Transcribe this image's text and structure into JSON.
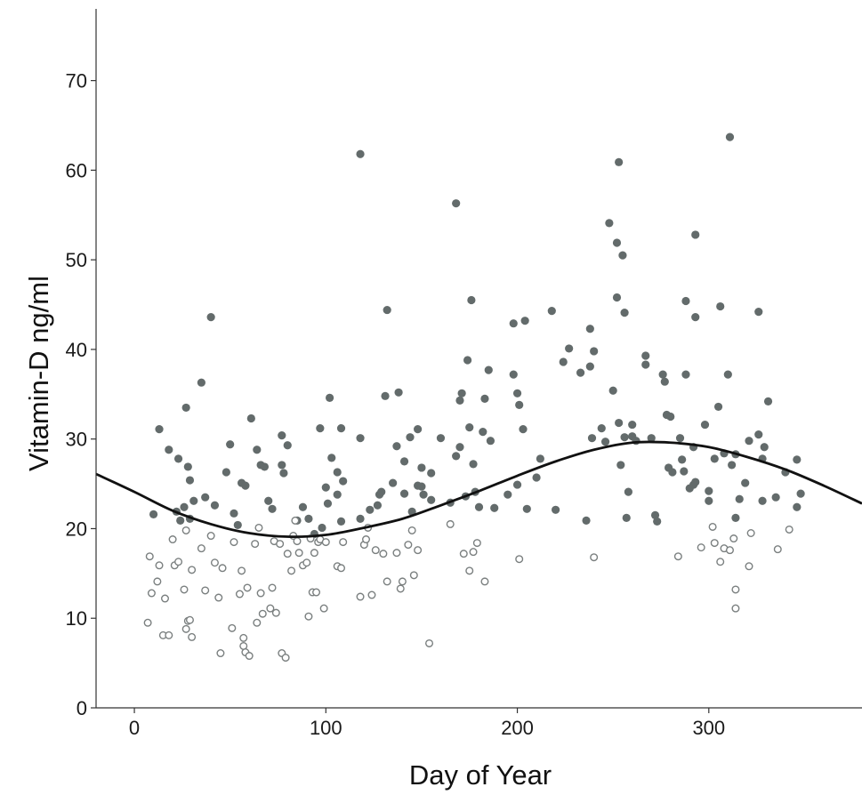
{
  "chart_data": {
    "type": "scatter",
    "title": "",
    "xlabel": "Day of Year",
    "ylabel": "Vitamin-D ng/ml",
    "xlim": [
      -20,
      380
    ],
    "ylim": [
      0,
      78
    ],
    "xticks": [
      0,
      100,
      200,
      300
    ],
    "yticks": [
      0,
      10,
      20,
      30,
      40,
      50,
      60,
      70
    ],
    "grid": false,
    "legend": "none",
    "colors": {
      "filled_marker": "#636b6b",
      "open_marker_stroke": "#7a7f7f",
      "curve": "#111111"
    },
    "series": [
      {
        "marker": "filled-circle",
        "points": [
          [
            10,
            21.6
          ],
          [
            13,
            31.1
          ],
          [
            18,
            28.8
          ],
          [
            22,
            21.9
          ],
          [
            23,
            27.8
          ],
          [
            24,
            20.9
          ],
          [
            26,
            22.4
          ],
          [
            27,
            33.5
          ],
          [
            28,
            26.9
          ],
          [
            29,
            25.4
          ],
          [
            29,
            21.1
          ],
          [
            31,
            23.1
          ],
          [
            35,
            36.3
          ],
          [
            37,
            23.5
          ],
          [
            40,
            43.6
          ],
          [
            42,
            22.6
          ],
          [
            48,
            26.3
          ],
          [
            50,
            29.4
          ],
          [
            52,
            21.7
          ],
          [
            54,
            20.4
          ],
          [
            56,
            25.1
          ],
          [
            58,
            24.8
          ],
          [
            61,
            32.3
          ],
          [
            64,
            28.8
          ],
          [
            66,
            27.1
          ],
          [
            68,
            26.9
          ],
          [
            70,
            23.1
          ],
          [
            72,
            22.2
          ],
          [
            77,
            30.4
          ],
          [
            77,
            27.1
          ],
          [
            78,
            26.2
          ],
          [
            80,
            29.3
          ],
          [
            85,
            20.9
          ],
          [
            88,
            22.4
          ],
          [
            91,
            21.1
          ],
          [
            94,
            19.4
          ],
          [
            97,
            31.2
          ],
          [
            98,
            20.1
          ],
          [
            100,
            24.6
          ],
          [
            101,
            22.8
          ],
          [
            102,
            34.6
          ],
          [
            103,
            27.9
          ],
          [
            106,
            23.8
          ],
          [
            106,
            26.3
          ],
          [
            108,
            31.2
          ],
          [
            108,
            20.8
          ],
          [
            109,
            25.3
          ],
          [
            118,
            61.8
          ],
          [
            118,
            30.1
          ],
          [
            118,
            21.1
          ],
          [
            123,
            22.1
          ],
          [
            127,
            22.6
          ],
          [
            128,
            23.8
          ],
          [
            129,
            24.1
          ],
          [
            131,
            34.8
          ],
          [
            132,
            44.4
          ],
          [
            135,
            25.1
          ],
          [
            137,
            29.2
          ],
          [
            138,
            35.2
          ],
          [
            141,
            23.9
          ],
          [
            141,
            27.5
          ],
          [
            144,
            30.2
          ],
          [
            145,
            21.9
          ],
          [
            148,
            24.8
          ],
          [
            148,
            31.1
          ],
          [
            150,
            26.8
          ],
          [
            150,
            24.7
          ],
          [
            151,
            23.8
          ],
          [
            155,
            23.2
          ],
          [
            155,
            26.2
          ],
          [
            160,
            30.1
          ],
          [
            165,
            22.9
          ],
          [
            168,
            28.1
          ],
          [
            168,
            56.3
          ],
          [
            170,
            34.3
          ],
          [
            170,
            29.1
          ],
          [
            171,
            35.1
          ],
          [
            173,
            23.6
          ],
          [
            174,
            38.8
          ],
          [
            175,
            31.3
          ],
          [
            176,
            45.5
          ],
          [
            177,
            27.2
          ],
          [
            178,
            24.1
          ],
          [
            180,
            22.4
          ],
          [
            182,
            30.8
          ],
          [
            183,
            34.5
          ],
          [
            185,
            37.7
          ],
          [
            186,
            29.8
          ],
          [
            188,
            22.3
          ],
          [
            195,
            23.8
          ],
          [
            198,
            42.9
          ],
          [
            198,
            37.2
          ],
          [
            200,
            35.1
          ],
          [
            200,
            24.9
          ],
          [
            201,
            33.8
          ],
          [
            203,
            31.1
          ],
          [
            204,
            43.2
          ],
          [
            205,
            22.2
          ],
          [
            210,
            25.7
          ],
          [
            212,
            27.8
          ],
          [
            218,
            44.3
          ],
          [
            220,
            22.1
          ],
          [
            224,
            38.6
          ],
          [
            227,
            40.1
          ],
          [
            233,
            37.4
          ],
          [
            236,
            20.9
          ],
          [
            238,
            42.3
          ],
          [
            238,
            38.1
          ],
          [
            239,
            30.1
          ],
          [
            240,
            39.8
          ],
          [
            244,
            31.2
          ],
          [
            246,
            29.7
          ],
          [
            248,
            54.1
          ],
          [
            250,
            35.4
          ],
          [
            252,
            51.9
          ],
          [
            252,
            45.8
          ],
          [
            253,
            31.8
          ],
          [
            253,
            60.9
          ],
          [
            254,
            27.1
          ],
          [
            255,
            50.5
          ],
          [
            256,
            44.1
          ],
          [
            256,
            30.2
          ],
          [
            257,
            21.2
          ],
          [
            258,
            24.1
          ],
          [
            260,
            31.6
          ],
          [
            260,
            30.3
          ],
          [
            262,
            29.8
          ],
          [
            267,
            38.3
          ],
          [
            267,
            39.3
          ],
          [
            270,
            30.1
          ],
          [
            272,
            21.5
          ],
          [
            273,
            20.8
          ],
          [
            276,
            37.2
          ],
          [
            277,
            36.4
          ],
          [
            278,
            32.7
          ],
          [
            279,
            26.8
          ],
          [
            280,
            32.5
          ],
          [
            281,
            26.3
          ],
          [
            285,
            30.1
          ],
          [
            286,
            27.7
          ],
          [
            287,
            26.4
          ],
          [
            288,
            45.4
          ],
          [
            288,
            37.2
          ],
          [
            290,
            24.5
          ],
          [
            292,
            29.1
          ],
          [
            292,
            24.9
          ],
          [
            293,
            52.8
          ],
          [
            293,
            43.6
          ],
          [
            293,
            25.2
          ],
          [
            298,
            31.6
          ],
          [
            300,
            24.2
          ],
          [
            300,
            23.1
          ],
          [
            303,
            27.8
          ],
          [
            305,
            33.6
          ],
          [
            306,
            44.8
          ],
          [
            308,
            28.4
          ],
          [
            310,
            37.2
          ],
          [
            311,
            63.7
          ],
          [
            312,
            27.1
          ],
          [
            314,
            28.3
          ],
          [
            314,
            21.2
          ],
          [
            316,
            23.3
          ],
          [
            319,
            25.1
          ],
          [
            321,
            29.8
          ],
          [
            326,
            30.5
          ],
          [
            326,
            44.2
          ],
          [
            328,
            27.8
          ],
          [
            328,
            23.1
          ],
          [
            329,
            29.1
          ],
          [
            331,
            34.2
          ],
          [
            335,
            23.5
          ],
          [
            340,
            26.3
          ],
          [
            346,
            27.7
          ],
          [
            346,
            22.4
          ],
          [
            348,
            23.9
          ]
        ]
      },
      {
        "marker": "open-circle",
        "points": [
          [
            7,
            9.5
          ],
          [
            8,
            16.9
          ],
          [
            9,
            12.8
          ],
          [
            12,
            14.1
          ],
          [
            13,
            15.9
          ],
          [
            15,
            8.1
          ],
          [
            16,
            12.2
          ],
          [
            18,
            8.1
          ],
          [
            20,
            18.8
          ],
          [
            21,
            15.9
          ],
          [
            23,
            16.3
          ],
          [
            26,
            13.2
          ],
          [
            27,
            19.8
          ],
          [
            27,
            8.8
          ],
          [
            28,
            9.7
          ],
          [
            29,
            9.8
          ],
          [
            30,
            15.4
          ],
          [
            30,
            7.9
          ],
          [
            35,
            17.8
          ],
          [
            37,
            13.1
          ],
          [
            40,
            19.2
          ],
          [
            42,
            16.2
          ],
          [
            44,
            12.3
          ],
          [
            45,
            6.1
          ],
          [
            46,
            15.6
          ],
          [
            51,
            8.9
          ],
          [
            52,
            18.5
          ],
          [
            55,
            12.7
          ],
          [
            56,
            15.3
          ],
          [
            57,
            7.8
          ],
          [
            57,
            6.9
          ],
          [
            58,
            6.2
          ],
          [
            59,
            13.4
          ],
          [
            60,
            5.8
          ],
          [
            63,
            18.3
          ],
          [
            64,
            9.5
          ],
          [
            65,
            20.1
          ],
          [
            66,
            12.8
          ],
          [
            67,
            10.5
          ],
          [
            71,
            11.1
          ],
          [
            72,
            13.4
          ],
          [
            73,
            18.6
          ],
          [
            74,
            10.6
          ],
          [
            76,
            18.3
          ],
          [
            77,
            6.1
          ],
          [
            79,
            5.6
          ],
          [
            80,
            17.2
          ],
          [
            82,
            15.3
          ],
          [
            83,
            19.2
          ],
          [
            84,
            20.9
          ],
          [
            85,
            18.6
          ],
          [
            86,
            17.3
          ],
          [
            88,
            15.9
          ],
          [
            90,
            16.2
          ],
          [
            91,
            10.2
          ],
          [
            92,
            18.9
          ],
          [
            93,
            12.9
          ],
          [
            94,
            17.3
          ],
          [
            95,
            12.9
          ],
          [
            96,
            18.5
          ],
          [
            97,
            18.8
          ],
          [
            99,
            11.1
          ],
          [
            100,
            18.5
          ],
          [
            106,
            15.8
          ],
          [
            108,
            15.6
          ],
          [
            109,
            18.5
          ],
          [
            118,
            12.4
          ],
          [
            120,
            18.2
          ],
          [
            121,
            18.8
          ],
          [
            122,
            20.1
          ],
          [
            124,
            12.6
          ],
          [
            126,
            17.6
          ],
          [
            130,
            17.2
          ],
          [
            132,
            14.1
          ],
          [
            137,
            17.3
          ],
          [
            139,
            13.3
          ],
          [
            140,
            14.1
          ],
          [
            143,
            18.2
          ],
          [
            145,
            19.8
          ],
          [
            146,
            14.8
          ],
          [
            148,
            17.6
          ],
          [
            154,
            7.2
          ],
          [
            165,
            20.5
          ],
          [
            172,
            17.2
          ],
          [
            175,
            15.3
          ],
          [
            177,
            17.4
          ],
          [
            179,
            18.4
          ],
          [
            183,
            14.1
          ],
          [
            201,
            16.6
          ],
          [
            240,
            16.8
          ],
          [
            284,
            16.9
          ],
          [
            296,
            17.9
          ],
          [
            302,
            20.2
          ],
          [
            303,
            18.4
          ],
          [
            306,
            16.3
          ],
          [
            308,
            17.8
          ],
          [
            311,
            17.6
          ],
          [
            313,
            18.9
          ],
          [
            314,
            13.2
          ],
          [
            314,
            11.1
          ],
          [
            321,
            15.8
          ],
          [
            322,
            19.5
          ],
          [
            336,
            17.7
          ],
          [
            342,
            19.9
          ]
        ]
      }
    ],
    "curve": {
      "type": "line",
      "points": [
        [
          -20,
          26.1
        ],
        [
          0,
          24.1
        ],
        [
          20,
          22.0
        ],
        [
          40,
          20.5
        ],
        [
          60,
          19.5
        ],
        [
          80,
          19.1
        ],
        [
          100,
          19.3
        ],
        [
          120,
          20.1
        ],
        [
          140,
          21.1
        ],
        [
          160,
          22.6
        ],
        [
          180,
          24.2
        ],
        [
          200,
          25.9
        ],
        [
          220,
          27.5
        ],
        [
          240,
          28.8
        ],
        [
          260,
          29.6
        ],
        [
          280,
          29.6
        ],
        [
          300,
          29.1
        ],
        [
          320,
          28.0
        ],
        [
          340,
          26.6
        ],
        [
          360,
          24.8
        ],
        [
          380,
          22.8
        ]
      ]
    }
  }
}
